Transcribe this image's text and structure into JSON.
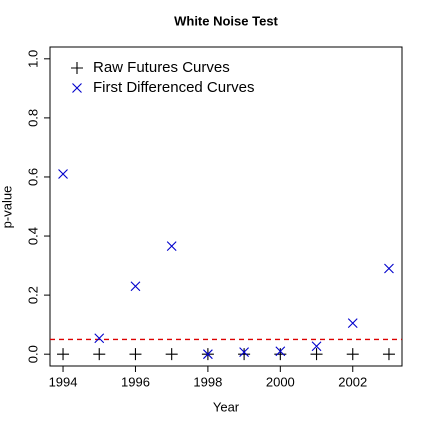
{
  "chart_data": {
    "type": "scatter",
    "title": "White Noise Test",
    "xlabel": "Year",
    "ylabel": "p-value",
    "x": [
      1994,
      1995,
      1996,
      1997,
      1998,
      1999,
      2000,
      2001,
      2002,
      2003
    ],
    "series": [
      {
        "name": "Raw Futures Curves",
        "color": "#000000",
        "marker": "plus",
        "values": [
          0,
          0,
          0,
          0,
          0,
          0,
          0,
          0,
          0,
          0
        ]
      },
      {
        "name": "First Differenced Curves",
        "color": "#0000cc",
        "marker": "cross",
        "values": [
          0.61,
          0.054,
          0.23,
          0.366,
          0,
          0.007,
          0.01,
          0.027,
          0.105,
          0.29
        ]
      }
    ],
    "xlim": [
      1993.64,
      2003.36
    ],
    "ylim": [
      -0.04,
      1.04
    ],
    "xticks": [
      1994,
      1996,
      1998,
      2000,
      2002
    ],
    "yticks": [
      {
        "value": 0,
        "label": "0.0"
      },
      {
        "value": 0.2,
        "label": "0.2"
      },
      {
        "value": 0.4,
        "label": "0.4"
      },
      {
        "value": 0.6,
        "label": "0.6"
      },
      {
        "value": 0.8,
        "label": "0.8"
      },
      {
        "value": 1,
        "label": "1.0"
      }
    ],
    "hline": {
      "value": 0.05,
      "color": "#dd0000"
    },
    "legend": "top-left"
  }
}
